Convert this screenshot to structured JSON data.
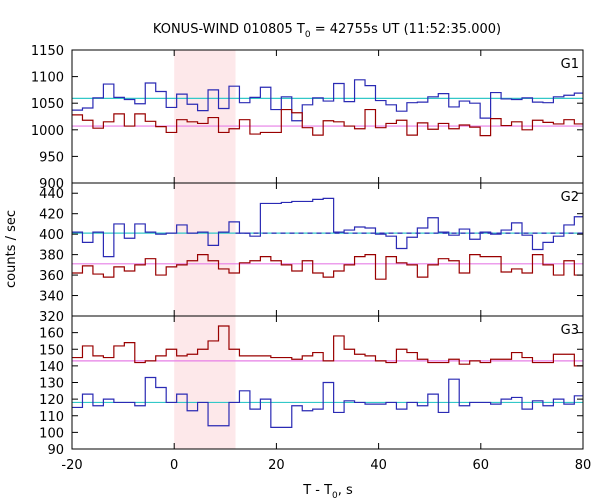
{
  "chart_data": {
    "type": "line",
    "title_parts": {
      "main": "KONUS-WIND 010805 T",
      "sub": "0",
      "tail": " = 42755s UT (11:52:35.000)"
    },
    "xlabel_parts": {
      "main": "T - T",
      "sub": "0",
      "tail": ", s"
    },
    "ylabel": "counts / sec",
    "xlim": [
      -20,
      80
    ],
    "xticks": [
      -20,
      0,
      20,
      40,
      60,
      80
    ],
    "grid": false,
    "highlight_interval": [
      0,
      12
    ],
    "colors": {
      "blue": "#2a2ab4",
      "red": "#990000",
      "cyan": "#33c8c8",
      "magenta": "#e67ee6",
      "highlight": "#fde8ea"
    },
    "panels": [
      {
        "label": "G1",
        "ylim": [
          900,
          1150
        ],
        "yticks": [
          900,
          950,
          1000,
          1050,
          1100,
          1150
        ],
        "bin_start": -20,
        "bin_width": 2.048,
        "series": [
          {
            "color": "blue",
            "values": [
              1037,
              1041,
              1060,
              1086,
              1061,
              1057,
              1049,
              1088,
              1072,
              1042,
              1067,
              1048,
              1036,
              1075,
              1040,
              1082,
              1051,
              1061,
              1080,
              1038,
              1062,
              1017,
              1047,
              1060,
              1054,
              1087,
              1053,
              1094,
              1083,
              1055,
              1047,
              1035,
              1051,
              1052,
              1062,
              1068,
              1043,
              1054,
              1050,
              1022,
              1070,
              1058,
              1057,
              1060,
              1052,
              1051,
              1062,
              1065,
              1069,
              1042,
              1050,
              1051,
              1039,
              1045,
              1034,
              1061,
              1064,
              1074,
              1089,
              1070,
              1080,
              1071,
              1071,
              1068,
              1084,
              1078,
              1061,
              1089,
              1056,
              1059,
              1071,
              1048,
              1055,
              1072,
              1038,
              1054,
              1089,
              1058,
              1079,
              1057,
              1061,
              1079,
              1055,
              1061,
              1044,
              1082,
              1070,
              1052,
              1047,
              1084,
              1041,
              1057,
              1060,
              1047,
              1065,
              1050,
              1050,
              1100
            ]
          },
          {
            "color": "red",
            "values": [
              1028,
              1018,
              1003,
              1015,
              1030,
              1007,
              1030,
              1016,
              1006,
              995,
              1019,
              1015,
              1012,
              1023,
              995,
              1002,
              1019,
              992,
              995,
              995,
              1038,
              1032,
              1004,
              990,
              1017,
              1015,
              1007,
              1002,
              1038,
              1004,
              1012,
              1018,
              990,
              1013,
              1001,
              1012,
              1002,
              1009,
              1005,
              989,
              1021,
              1008,
              1015,
              1000,
              1018,
              1014,
              1011,
              1019,
              1011,
              1006,
              987,
              1022,
              1018,
              1002,
              1002,
              1026,
              1013,
              988,
              997,
              1028,
              1013,
              998,
              1008,
              983,
              1012,
              1027,
              1012,
              1003,
              1003,
              1010,
              970,
              1003,
              1014,
              1002,
              999,
              1021,
              1015,
              1001,
              989,
              1025,
              987,
              1006,
              996,
              980,
              984,
              964,
              1030,
              1008,
              1010,
              1006,
              1009,
              1006,
              1000,
              993,
              1030,
              1006,
              1017,
              1032
            ]
          }
        ],
        "means": [
          {
            "color": "cyan",
            "value": 1059
          },
          {
            "color": "magenta",
            "value": 1007
          }
        ]
      },
      {
        "label": "G2",
        "ylim": [
          320,
          450
        ],
        "yticks": [
          320,
          340,
          360,
          380,
          400,
          420,
          440
        ],
        "bin_start": -20,
        "bin_width": 2.048,
        "series": [
          {
            "color": "blue",
            "values": [
              402,
              392,
              402,
              378,
              410,
              396,
              410,
              402,
              400,
              401,
              409,
              401,
              402,
              389,
              402,
              412,
              401,
              398,
              430,
              430,
              431,
              432,
              432,
              434,
              435,
              402,
              404,
              407,
              406,
              400,
              398,
              386,
              397,
              406,
              416,
              402,
              399,
              405,
              395,
              402,
              400,
              404,
              411,
              399,
              385,
              392,
              398,
              409,
              417,
              400,
              401,
              392,
              402,
              402,
              400,
              375,
              396,
              400,
              402,
              391,
              402,
              410,
              402,
              387,
              401,
              403,
              386,
              395,
              401,
              407,
              391,
              398,
              399,
              398,
              406,
              397,
              392,
              399,
              399,
              394,
              409,
              391,
              407,
              406,
              398,
              377,
              401,
              399,
              386,
              406,
              401,
              406,
              395,
              404,
              405,
              395,
              404,
              409
            ]
          },
          {
            "color": "red",
            "values": [
              362,
              369,
              361,
              358,
              368,
              364,
              370,
              376,
              360,
              368,
              370,
              374,
              380,
              374,
              366,
              362,
              372,
              374,
              378,
              374,
              370,
              364,
              374,
              362,
              358,
              364,
              370,
              378,
              380,
              356,
              378,
              372,
              370,
              358,
              370,
              376,
              374,
              362,
              380,
              378,
              378,
              363,
              366,
              362,
              380,
              370,
              360,
              374,
              360,
              355,
              366,
              368,
              360,
              362,
              358,
              378,
              346,
              360,
              372,
              368,
              366,
              360,
              374,
              362,
              376,
              372,
              370,
              385,
              374,
              360,
              362,
              366,
              360,
              380,
              372,
              368,
              375,
              370,
              370,
              372,
              360,
              364,
              362,
              373,
              361,
              368,
              372,
              380,
              362,
              368,
              374,
              372,
              375,
              370,
              380,
              374,
              366,
              368
            ]
          }
        ],
        "dashed": [
          {
            "color": "blue",
            "x_from": 12,
            "x_to": 80,
            "value": 401
          }
        ],
        "means": [
          {
            "color": "cyan",
            "value": 401
          },
          {
            "color": "magenta",
            "value": 371
          }
        ]
      },
      {
        "label": "G3",
        "ylim": [
          90,
          170
        ],
        "yticks": [
          90,
          100,
          110,
          120,
          130,
          140,
          150,
          160
        ],
        "bin_start": -20,
        "bin_width": 2.048,
        "series": [
          {
            "color": "blue",
            "values": [
              115,
              123,
              116,
              120,
              118,
              118,
              116,
              133,
              127,
              118,
              123,
              113,
              118,
              104,
              104,
              118,
              125,
              114,
              120,
              103,
              103,
              116,
              113,
              114,
              130,
              112,
              119,
              118,
              117,
              117,
              118,
              114,
              118,
              116,
              123,
              112,
              132,
              116,
              118,
              118,
              117,
              120,
              121,
              114,
              119,
              116,
              120,
              117,
              122,
              115,
              113,
              116,
              118,
              120,
              112,
              116,
              121,
              118,
              117,
              118,
              121,
              124,
              120,
              113,
              119,
              120,
              115,
              122,
              118,
              117,
              120,
              120,
              116,
              119,
              117,
              119,
              122,
              118,
              116,
              121,
              115,
              117,
              112,
              121,
              119,
              118,
              116,
              117,
              119,
              118,
              116,
              114,
              119,
              117,
              120,
              116,
              113,
              118
            ]
          },
          {
            "color": "red",
            "values": [
              145,
              152,
              146,
              145,
              152,
              154,
              142,
              143,
              146,
              150,
              146,
              147,
              150,
              155,
              164,
              150,
              146,
              146,
              146,
              145,
              145,
              144,
              146,
              148,
              143,
              158,
              150,
              147,
              146,
              143,
              142,
              150,
              148,
              144,
              142,
              142,
              144,
              141,
              143,
              142,
              144,
              144,
              148,
              145,
              142,
              142,
              147,
              147,
              140,
              146,
              145,
              145,
              138,
              144,
              143,
              136,
              142,
              142,
              142,
              144,
              146,
              144,
              142,
              145,
              140,
              145,
              148,
              142,
              146,
              140,
              142,
              146,
              142,
              144,
              143,
              144,
              138,
              146,
              140,
              142,
              144,
              142,
              150,
              142,
              146,
              143,
              149,
              140,
              144,
              136,
              142,
              146,
              140,
              143,
              146,
              141,
              136,
              141
            ]
          }
        ],
        "means": [
          {
            "color": "cyan",
            "value": 118
          },
          {
            "color": "magenta",
            "value": 143
          }
        ]
      }
    ]
  }
}
